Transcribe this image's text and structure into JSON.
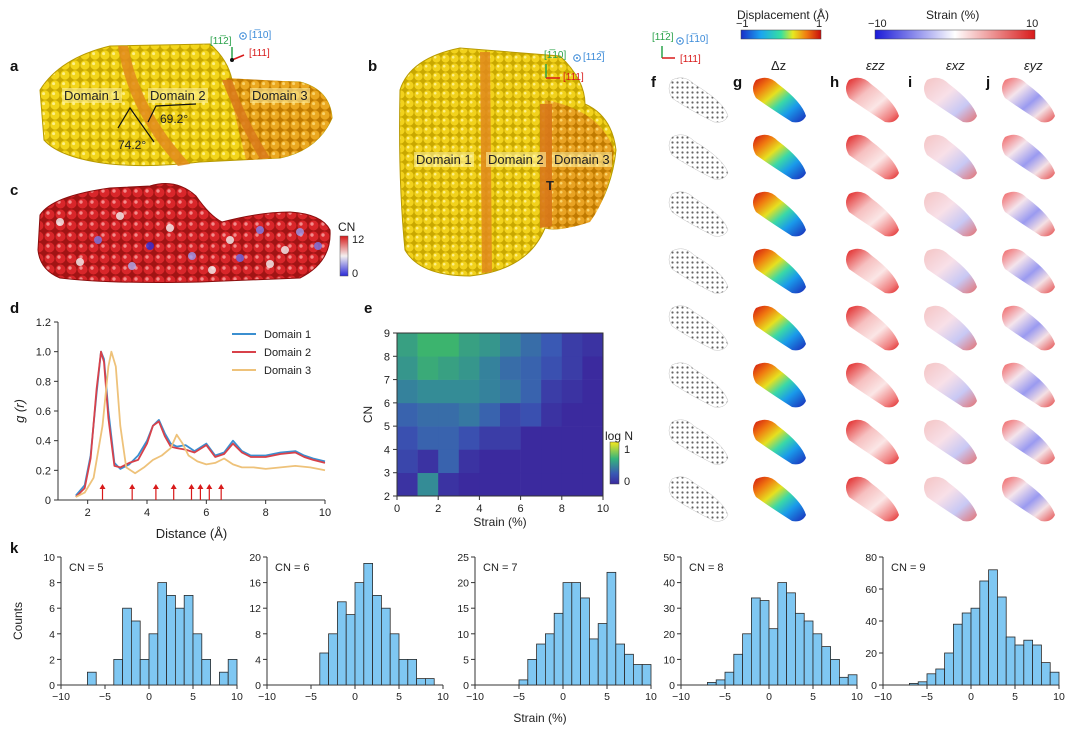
{
  "panels": {
    "a": {
      "label": "a",
      "domains": [
        "Domain 1",
        "Domain 2",
        "Domain 3"
      ],
      "angles": [
        "69.2°",
        "74.2°"
      ],
      "axes": {
        "green": "[11̅2]",
        "blue": "[1̅10]",
        "red": "[111]"
      }
    },
    "b": {
      "label": "b",
      "domains": [
        "Domain 1",
        "Domain 2",
        "Domain 3"
      ],
      "defect": "T",
      "axes": {
        "green": "[1̅10]",
        "blue": "[112̅]",
        "red": "[111]"
      }
    },
    "c": {
      "label": "c",
      "colorbar_title": "CN",
      "colorbar_ticks": [
        "12",
        "0"
      ]
    },
    "d": {
      "label": "d"
    },
    "e": {
      "label": "e",
      "colorbar_title": "log N",
      "colorbar_ticks": [
        "1",
        "0"
      ]
    },
    "f": {
      "label": "f",
      "axes": {
        "green": "[11̅2]",
        "blue": "[1̅10]",
        "red": "[111]"
      }
    },
    "g": {
      "label": "g",
      "title": "Δz"
    },
    "h": {
      "label": "h",
      "title": "εzz"
    },
    "i": {
      "label": "i",
      "title": "εxz"
    },
    "j": {
      "label": "j",
      "title": "εyz"
    },
    "k": {
      "label": "k"
    }
  },
  "colorbars": {
    "displacement": {
      "title": "Displacement (Å)",
      "min": "−1",
      "max": "1"
    },
    "strain": {
      "title": "Strain (%)",
      "min": "−10",
      "max": "10"
    }
  },
  "chart_data": [
    {
      "id": "d",
      "type": "line",
      "xlabel": "Distance (Å)",
      "ylabel": "g (r)",
      "xlim": [
        1,
        10
      ],
      "ylim": [
        0,
        1.2
      ],
      "xticks": [
        2,
        4,
        6,
        8,
        10
      ],
      "yticks": [
        0,
        0.2,
        0.4,
        0.6,
        0.8,
        1.0,
        1.2
      ],
      "ytick_labels": [
        "0",
        "0.2",
        "0.4",
        "0.6",
        "0.8",
        "1.0",
        "1.2"
      ],
      "legend_position": "top-right",
      "series": [
        {
          "name": "Domain 1",
          "color": "#3b8fd0",
          "x": [
            1.6,
            1.9,
            2.1,
            2.3,
            2.45,
            2.55,
            2.7,
            2.9,
            3.1,
            3.4,
            3.7,
            4.0,
            4.2,
            4.4,
            4.6,
            4.8,
            5.0,
            5.3,
            5.6,
            6.0,
            6.3,
            6.6,
            6.9,
            7.2,
            7.5,
            8.0,
            8.5,
            9.0,
            9.3,
            9.6,
            10.0
          ],
          "y": [
            0.03,
            0.1,
            0.3,
            0.72,
            1.0,
            0.95,
            0.6,
            0.25,
            0.21,
            0.24,
            0.3,
            0.4,
            0.5,
            0.54,
            0.45,
            0.38,
            0.36,
            0.37,
            0.33,
            0.38,
            0.3,
            0.32,
            0.4,
            0.33,
            0.3,
            0.3,
            0.32,
            0.33,
            0.3,
            0.28,
            0.26
          ]
        },
        {
          "name": "Domain 2",
          "color": "#d8414a",
          "x": [
            1.6,
            1.9,
            2.1,
            2.3,
            2.45,
            2.55,
            2.7,
            2.9,
            3.1,
            3.4,
            3.7,
            4.0,
            4.2,
            4.4,
            4.6,
            4.8,
            5.0,
            5.3,
            5.6,
            6.0,
            6.3,
            6.6,
            6.9,
            7.2,
            7.5,
            8.0,
            8.5,
            9.0,
            9.3,
            9.6,
            10.0
          ],
          "y": [
            0.02,
            0.08,
            0.28,
            0.75,
            1.0,
            0.93,
            0.55,
            0.23,
            0.22,
            0.25,
            0.27,
            0.38,
            0.5,
            0.53,
            0.43,
            0.36,
            0.35,
            0.34,
            0.32,
            0.37,
            0.29,
            0.31,
            0.38,
            0.32,
            0.29,
            0.29,
            0.31,
            0.32,
            0.29,
            0.27,
            0.25
          ]
        },
        {
          "name": "Domain 3",
          "color": "#eec27a",
          "x": [
            1.6,
            1.9,
            2.2,
            2.5,
            2.7,
            2.8,
            2.95,
            3.1,
            3.3,
            3.6,
            3.9,
            4.2,
            4.5,
            4.8,
            5.0,
            5.2,
            5.4,
            5.7,
            6.0,
            6.3,
            6.6,
            6.9,
            7.2,
            7.6,
            8.0,
            8.5,
            9.0,
            9.5,
            10.0
          ],
          "y": [
            0.02,
            0.05,
            0.15,
            0.5,
            0.9,
            1.0,
            0.9,
            0.5,
            0.22,
            0.18,
            0.22,
            0.27,
            0.3,
            0.35,
            0.44,
            0.38,
            0.3,
            0.26,
            0.24,
            0.25,
            0.28,
            0.24,
            0.22,
            0.22,
            0.21,
            0.22,
            0.23,
            0.22,
            0.2
          ]
        }
      ],
      "markers_x": [
        2.5,
        3.5,
        4.3,
        4.9,
        5.5,
        5.8,
        6.1,
        6.5
      ]
    },
    {
      "id": "e",
      "type": "heatmap",
      "xlabel": "Strain (%)",
      "ylabel": "CN",
      "xlim": [
        0,
        10
      ],
      "ylim": [
        2,
        9
      ],
      "xticks": [
        0,
        2,
        4,
        6,
        8,
        10
      ],
      "yticks": [
        2,
        3,
        4,
        5,
        6,
        7,
        8,
        9
      ],
      "x_bin_width": 1,
      "y_bins": [
        2,
        3,
        4,
        5,
        6,
        7,
        8
      ],
      "colorbar_range": [
        0,
        1
      ],
      "values": [
        [
          0.05,
          0.5,
          0.05,
          0,
          0,
          0,
          0,
          0,
          0,
          0
        ],
        [
          0.15,
          0.05,
          0.3,
          0.05,
          0,
          0,
          0,
          0,
          0,
          0
        ],
        [
          0.2,
          0.3,
          0.3,
          0.2,
          0.1,
          0.1,
          0,
          0,
          0,
          0
        ],
        [
          0.3,
          0.35,
          0.35,
          0.4,
          0.3,
          0.15,
          0.2,
          0.05,
          0,
          0
        ],
        [
          0.45,
          0.5,
          0.5,
          0.5,
          0.45,
          0.4,
          0.3,
          0.1,
          0.05,
          0
        ],
        [
          0.55,
          0.65,
          0.6,
          0.55,
          0.45,
          0.35,
          0.3,
          0.2,
          0.1,
          0
        ],
        [
          0.6,
          0.7,
          0.7,
          0.6,
          0.55,
          0.45,
          0.35,
          0.25,
          0.1,
          0.05
        ],
        [
          0.95,
          0.9,
          0.85,
          0.8,
          0.75,
          0.7,
          0.5,
          0.4,
          0.25,
          0.2
        ]
      ]
    },
    {
      "id": "k",
      "type": "bar",
      "subtype": "histogram",
      "xlabel": "Strain (%)",
      "ylabel": "Counts",
      "xlim": [
        -10,
        10
      ],
      "xticks": [
        -10,
        -5,
        0,
        5,
        10
      ],
      "bin_width": 1,
      "bin_left_edges": [
        -10,
        -9,
        -8,
        -7,
        -6,
        -5,
        -4,
        -3,
        -2,
        -1,
        0,
        1,
        2,
        3,
        4,
        5,
        6,
        7,
        8,
        9
      ],
      "panels": [
        {
          "title": "CN = 5",
          "ylim": [
            0,
            10
          ],
          "yticks": [
            0,
            2,
            4,
            6,
            8,
            10
          ],
          "values": [
            0,
            0,
            0,
            1,
            0,
            0,
            2,
            6,
            5,
            2,
            4,
            8,
            7,
            6,
            7,
            4,
            2,
            0,
            1,
            2
          ]
        },
        {
          "title": "CN = 6",
          "ylim": [
            0,
            20
          ],
          "yticks": [
            0,
            4,
            8,
            12,
            16,
            20
          ],
          "values": [
            0,
            0,
            0,
            0,
            0,
            0,
            5,
            8,
            13,
            11,
            16,
            19,
            14,
            12,
            8,
            4,
            4,
            1,
            1,
            0
          ]
        },
        {
          "title": "CN = 7",
          "ylim": [
            0,
            25
          ],
          "yticks": [
            0,
            5,
            10,
            15,
            20,
            25
          ],
          "values": [
            0,
            0,
            0,
            0,
            0,
            1,
            5,
            8,
            10,
            14,
            20,
            20,
            17,
            9,
            12,
            22,
            8,
            6,
            4,
            4
          ]
        },
        {
          "title": "CN = 8",
          "ylim": [
            0,
            50
          ],
          "yticks": [
            0,
            10,
            20,
            30,
            40,
            50
          ],
          "values": [
            0,
            0,
            0,
            1,
            2,
            5,
            12,
            20,
            34,
            33,
            22,
            40,
            36,
            28,
            25,
            20,
            15,
            10,
            3,
            4
          ]
        },
        {
          "title": "CN = 9",
          "ylim": [
            0,
            80
          ],
          "yticks": [
            0,
            20,
            40,
            60,
            80
          ],
          "values": [
            0,
            0,
            0,
            1,
            2,
            7,
            10,
            20,
            38,
            45,
            48,
            65,
            72,
            55,
            30,
            25,
            28,
            25,
            14,
            8
          ]
        }
      ]
    }
  ]
}
